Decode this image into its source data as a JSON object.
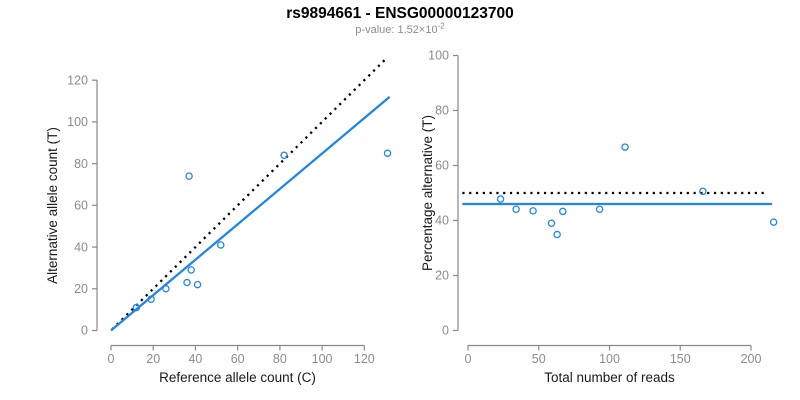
{
  "title": "rs9894661 - ENSG00000123700",
  "subtitle": {
    "label": "p-value: 1.52×10",
    "exponent": "-2"
  },
  "colors": {
    "accent_blue": "#2386E2",
    "axis_gray": "#898989",
    "tick_label_gray": "#8c8c8c",
    "title_black": "#000000",
    "subtitle_gray": "#8a8a8a"
  },
  "chart_data": [
    {
      "type": "scatter",
      "panel": "left",
      "xlabel": "Reference allele count (C)",
      "ylabel": "Alternative allele count (T)",
      "xticks": [
        0,
        20,
        40,
        60,
        80,
        100,
        120
      ],
      "yticks": [
        0,
        20,
        40,
        60,
        80,
        100,
        120
      ],
      "xlim": [
        0,
        134
      ],
      "ylim": [
        0,
        132
      ],
      "grid": false,
      "point_color": "#2386E2",
      "points": [
        [
          12,
          11
        ],
        [
          19,
          15
        ],
        [
          26,
          20
        ],
        [
          36,
          23
        ],
        [
          38,
          29
        ],
        [
          41,
          22
        ],
        [
          52,
          41
        ],
        [
          37,
          74
        ],
        [
          82,
          84
        ],
        [
          131,
          85
        ]
      ],
      "lines": [
        {
          "name": "identity-line",
          "style": "dotted",
          "color": "#000000",
          "x1": 0.5,
          "y1": 0.5,
          "x2": 131,
          "y2": 131
        },
        {
          "name": "regression-line",
          "style": "solid",
          "color": "#2386E2",
          "x1": 0,
          "y1": 0,
          "x2": 132,
          "y2": 112
        }
      ]
    },
    {
      "type": "scatter",
      "panel": "right",
      "xlabel": "Total number of reads",
      "ylabel": "Percentage alternative (T)",
      "xticks": [
        0,
        50,
        100,
        150,
        200
      ],
      "yticks": [
        0,
        20,
        40,
        60,
        80,
        100
      ],
      "xlim": [
        0,
        220
      ],
      "ylim": [
        0,
        100
      ],
      "grid": false,
      "point_color": "#2386E2",
      "points": [
        [
          23,
          47.8
        ],
        [
          34,
          44.1
        ],
        [
          46,
          43.5
        ],
        [
          59,
          39.0
        ],
        [
          63,
          34.9
        ],
        [
          67,
          43.3
        ],
        [
          93,
          44.1
        ],
        [
          111,
          66.7
        ],
        [
          166,
          50.6
        ],
        [
          216,
          39.4
        ]
      ],
      "lines": [
        {
          "name": "expected-50pct-line",
          "style": "dotted",
          "color": "#000000",
          "x1": -4,
          "y1": 50,
          "x2": 212,
          "y2": 50
        },
        {
          "name": "mean-percentage-line",
          "style": "solid",
          "color": "#2386E2",
          "x1": -4,
          "y1": 46,
          "x2": 215,
          "y2": 46
        }
      ]
    }
  ]
}
